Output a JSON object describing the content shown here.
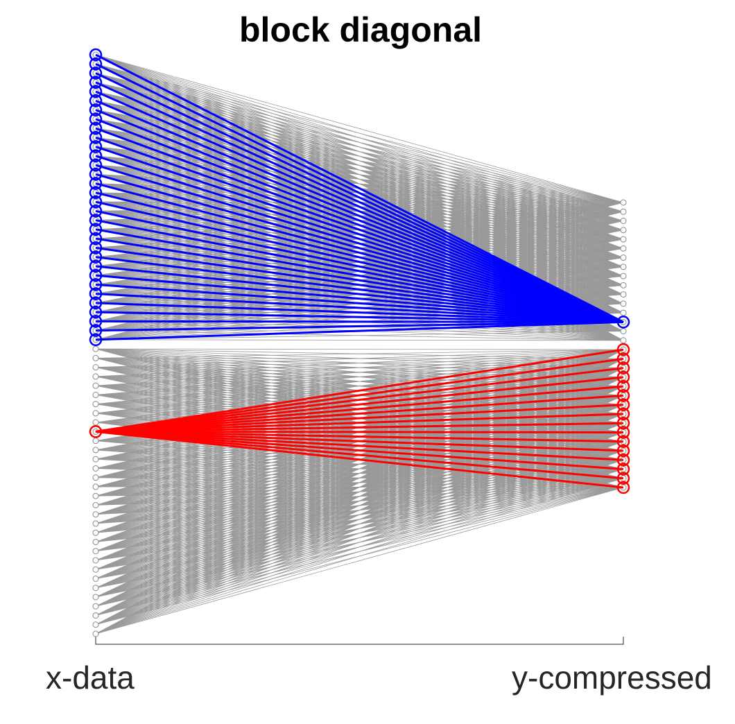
{
  "title": "block diagonal",
  "left_label": "x-data",
  "right_label": "y-compressed",
  "colors": {
    "background": "#ffffff",
    "edge": "#999999",
    "node": "#888888",
    "highlight_row": "#0000ff",
    "highlight_col": "#ff0000",
    "axis": "#262626"
  },
  "diagram": {
    "left_nodes": 64,
    "right_nodes": 32,
    "blocks": 2,
    "highlighted_right_node": 13,
    "highlighted_left_node": 41
  }
}
